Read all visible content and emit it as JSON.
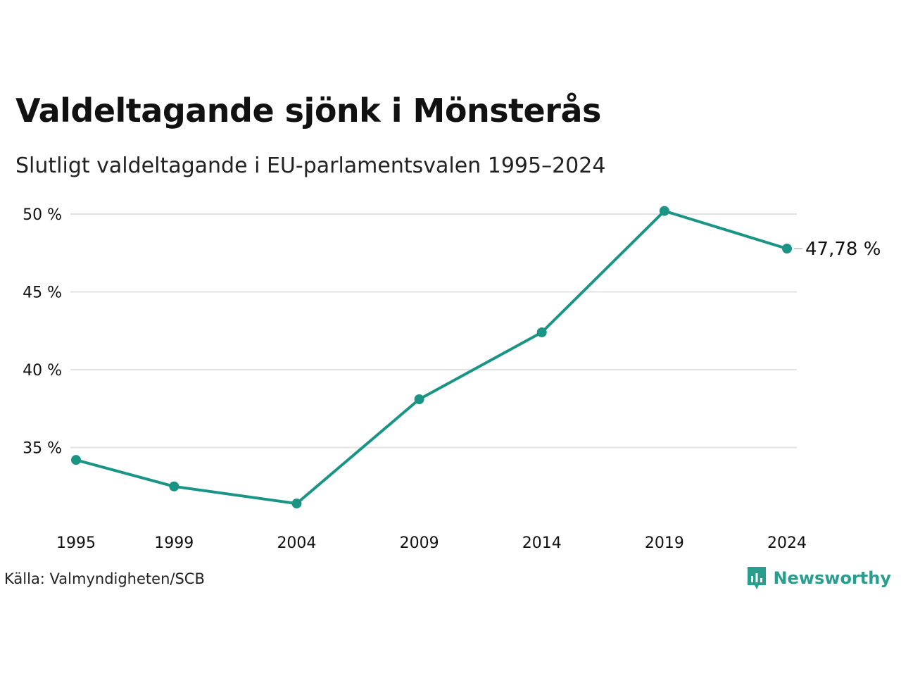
{
  "header": {
    "title": "Valdeltagande sjönk i Mönsterås",
    "subtitle": "Slutligt valdeltagande i EU-parlamentsvalen 1995–2024"
  },
  "footer": {
    "source": "Källa: Valmyndigheten/SCB",
    "brand": "Newsworthy"
  },
  "colors": {
    "line": "#1a9485",
    "grid": "#e2e2e2",
    "brand": "#2a9d8f"
  },
  "chart_data": {
    "type": "line",
    "categories": [
      "1995",
      "1999",
      "2004",
      "2009",
      "2014",
      "2019",
      "2024"
    ],
    "x": [
      1995,
      1999,
      2004,
      2009,
      2014,
      2019,
      2024
    ],
    "series": [
      {
        "values": [
          34.2,
          32.5,
          31.4,
          38.1,
          42.4,
          50.2,
          47.78
        ]
      }
    ],
    "end_label": "47,78 %",
    "yticks": [
      35,
      40,
      45,
      50
    ],
    "ytick_labels": [
      "35 %",
      "40 %",
      "45 %",
      "50 %"
    ],
    "ylim": [
      30,
      50
    ],
    "grid": true,
    "legend": "none"
  }
}
